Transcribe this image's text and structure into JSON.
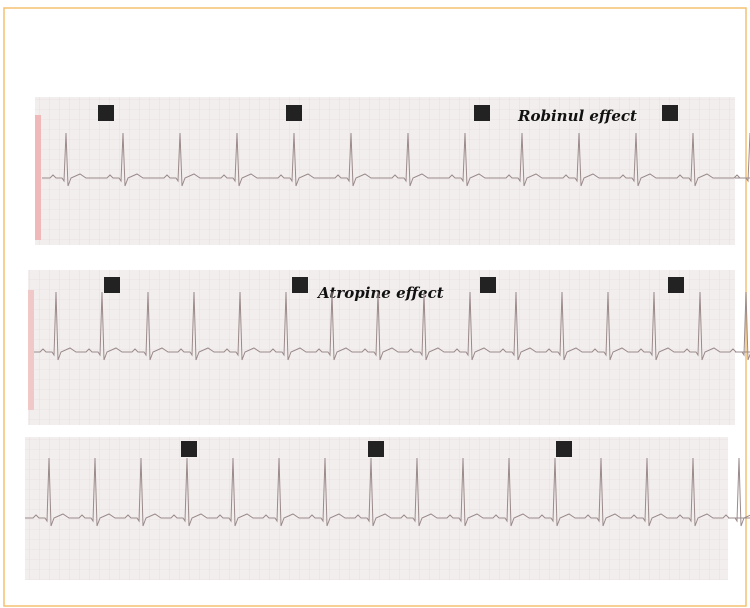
{
  "strips": [
    {
      "annotation": "Robinul effect"
    },
    {
      "annotation": "Atropine effect"
    },
    {}
  ]
}
